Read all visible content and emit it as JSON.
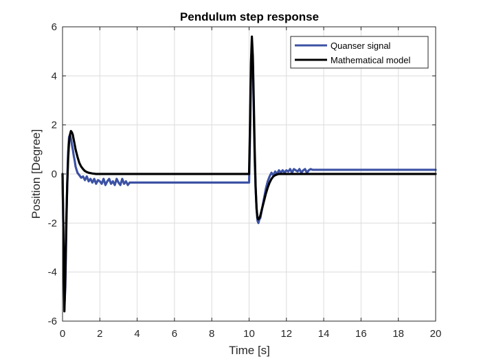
{
  "chart_data": {
    "type": "line",
    "title": "Pendulum step response",
    "xlabel": "Time  [s]",
    "ylabel": "Position [Degree]",
    "xlim": [
      0,
      20
    ],
    "ylim": [
      -6,
      6
    ],
    "xticks": [
      0,
      2,
      4,
      6,
      8,
      10,
      12,
      14,
      16,
      18,
      20
    ],
    "yticks": [
      -6,
      -4,
      -2,
      0,
      2,
      4,
      6
    ],
    "grid": true,
    "legend_position": "top-right",
    "series": [
      {
        "name": "Quanser signal",
        "color": "#3c52a4",
        "x": [
          0,
          0.05,
          0.1,
          0.15,
          0.2,
          0.25,
          0.3,
          0.35,
          0.4,
          0.45,
          0.5,
          0.55,
          0.6,
          0.65,
          0.7,
          0.8,
          0.9,
          1.0,
          1.1,
          1.2,
          1.3,
          1.4,
          1.5,
          1.6,
          1.7,
          1.8,
          1.9,
          2.0,
          2.1,
          2.2,
          2.3,
          2.4,
          2.5,
          2.6,
          2.7,
          2.8,
          2.9,
          3.0,
          3.1,
          3.2,
          3.3,
          3.4,
          3.5,
          3.6,
          3.65,
          10.0,
          10.05,
          10.1,
          10.15,
          10.2,
          10.25,
          10.3,
          10.35,
          10.4,
          10.45,
          10.5,
          10.55,
          10.6,
          10.7,
          10.8,
          10.9,
          11.0,
          11.1,
          11.2,
          11.3,
          11.4,
          11.5,
          11.6,
          11.7,
          11.8,
          11.9,
          12.0,
          12.1,
          12.2,
          12.3,
          12.4,
          12.5,
          12.6,
          12.7,
          12.8,
          12.9,
          13.0,
          13.1,
          13.2,
          13.3,
          13.4,
          20
        ],
        "y": [
          0,
          -2.8,
          -5.4,
          -4.6,
          -2.4,
          -0.4,
          0.9,
          1.5,
          1.6,
          1.45,
          1.2,
          1.0,
          0.75,
          0.55,
          0.3,
          0.05,
          -0.05,
          -0.15,
          -0.1,
          -0.25,
          -0.1,
          -0.3,
          -0.2,
          -0.35,
          -0.2,
          -0.4,
          -0.25,
          -0.3,
          -0.4,
          -0.2,
          -0.45,
          -0.3,
          -0.2,
          -0.4,
          -0.3,
          -0.45,
          -0.2,
          -0.35,
          -0.45,
          -0.2,
          -0.4,
          -0.3,
          -0.45,
          -0.35,
          -0.35,
          -0.35,
          1.5,
          4.0,
          5.3,
          4.6,
          2.6,
          0.6,
          -0.6,
          -1.4,
          -1.9,
          -2.0,
          -1.85,
          -1.8,
          -1.4,
          -1.0,
          -0.6,
          -0.3,
          -0.1,
          0.05,
          -0.05,
          0.1,
          0.0,
          0.15,
          0.05,
          0.15,
          0.05,
          0.15,
          0.1,
          0.2,
          0.05,
          0.2,
          0.15,
          0.1,
          0.2,
          0.05,
          0.15,
          0.2,
          0.05,
          0.15,
          0.2,
          0.17,
          0.17
        ]
      },
      {
        "name": "Mathematical model",
        "color": "#000000",
        "x": [
          0,
          0.05,
          0.1,
          0.15,
          0.2,
          0.25,
          0.3,
          0.35,
          0.4,
          0.45,
          0.5,
          0.55,
          0.6,
          0.65,
          0.7,
          0.8,
          0.9,
          1.0,
          1.1,
          1.2,
          1.3,
          1.4,
          1.6,
          1.8,
          2.0,
          2.5,
          3.0,
          10.0,
          10.05,
          10.1,
          10.15,
          10.2,
          10.25,
          10.3,
          10.35,
          10.4,
          10.45,
          10.5,
          10.55,
          10.6,
          10.7,
          10.8,
          10.9,
          11.0,
          11.1,
          11.2,
          11.3,
          11.4,
          11.5,
          11.6,
          11.8,
          12.0,
          12.5,
          20
        ],
        "y": [
          0,
          -2.5,
          -5.6,
          -4.2,
          -2.0,
          -0.5,
          0.6,
          1.3,
          1.6,
          1.75,
          1.7,
          1.6,
          1.4,
          1.2,
          1.0,
          0.7,
          0.45,
          0.3,
          0.2,
          0.12,
          0.08,
          0.05,
          0.02,
          0.0,
          0.0,
          0.0,
          0.0,
          0.0,
          2.0,
          4.5,
          5.6,
          4.8,
          3.0,
          1.0,
          -0.5,
          -1.4,
          -1.8,
          -1.85,
          -1.8,
          -1.7,
          -1.4,
          -1.1,
          -0.8,
          -0.55,
          -0.35,
          -0.2,
          -0.1,
          -0.05,
          -0.02,
          0.0,
          0.0,
          0.0,
          0.0,
          0.0
        ]
      }
    ]
  }
}
